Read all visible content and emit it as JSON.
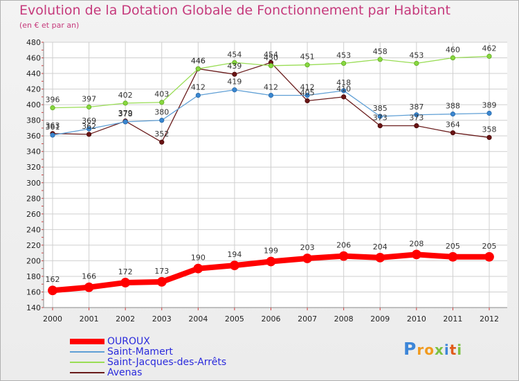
{
  "chart_data": {
    "type": "line",
    "title": "Evolution de la Dotation Globale de Fonctionnement par Habitant",
    "subtitle": "(en € et par an)",
    "xlabel": "",
    "ylabel": "",
    "categories": [
      "2000",
      "2001",
      "2002",
      "2003",
      "2004",
      "2005",
      "2006",
      "2007",
      "2008",
      "2009",
      "2010",
      "2011",
      "2012"
    ],
    "ylim": [
      140,
      480
    ],
    "yticks": [
      140,
      160,
      180,
      200,
      220,
      240,
      260,
      280,
      300,
      320,
      340,
      360,
      380,
      400,
      420,
      440,
      460,
      480
    ],
    "grid": true,
    "legend_position": "bottom-left",
    "series": [
      {
        "name": "OUROUX",
        "color": "#ff0000",
        "values": [
          162,
          166,
          172,
          173,
          190,
          194,
          199,
          203,
          206,
          204,
          208,
          205,
          205
        ]
      },
      {
        "name": "Saint-Mamert",
        "color": "#5f9fd5",
        "values": [
          361,
          369,
          378,
          380,
          412,
          419,
          412,
          412,
          418,
          385,
          387,
          388,
          389
        ]
      },
      {
        "name": "Saint-Jacques-des-Arrêts",
        "color": "#99dd55",
        "values": [
          396,
          397,
          402,
          403,
          446,
          454,
          450,
          451,
          453,
          458,
          453,
          460,
          462
        ]
      },
      {
        "name": "Avenas",
        "color": "#6a1c1c",
        "values": [
          363,
          362,
          379,
          352,
          446,
          439,
          454,
          405,
          410,
          373,
          373,
          364,
          358
        ]
      }
    ]
  },
  "logo": {
    "text_parts": [
      {
        "text": "P",
        "color": "#3d86d8"
      },
      {
        "text": "ro",
        "color": "#f19a1e"
      },
      {
        "text": "x",
        "color": "#7cc142"
      },
      {
        "text": "i",
        "color": "#3d86d8"
      },
      {
        "text": "t",
        "color": "#e05a1a"
      },
      {
        "text": "i",
        "color": "#7cc142"
      }
    ]
  }
}
